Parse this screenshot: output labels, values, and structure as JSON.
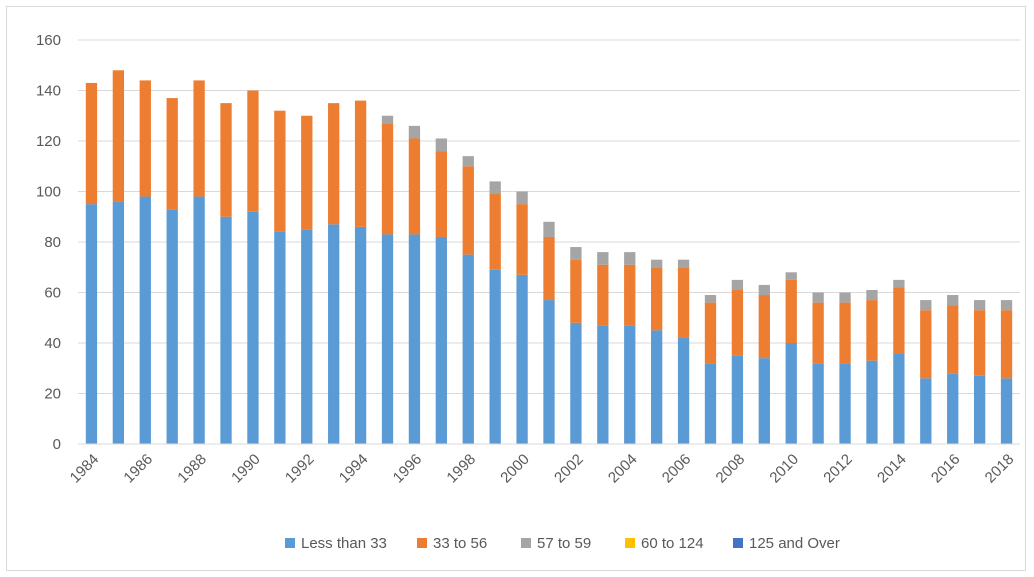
{
  "chart_data": {
    "type": "bar",
    "stacked": true,
    "title": "",
    "xlabel": "",
    "ylabel": "",
    "ylim": [
      0,
      160
    ],
    "yticks": [
      0,
      20,
      40,
      60,
      80,
      100,
      120,
      140,
      160
    ],
    "grid": true,
    "legend_position": "bottom",
    "categories": [
      "1984",
      "1985",
      "1986",
      "1987",
      "1988",
      "1989",
      "1990",
      "1991",
      "1992",
      "1993",
      "1994",
      "1995",
      "1996",
      "1997",
      "1998",
      "1999",
      "2000",
      "2001",
      "2002",
      "2003",
      "2004",
      "2005",
      "2006",
      "2007",
      "2008",
      "2009",
      "2010",
      "2011",
      "2012",
      "2013",
      "2014",
      "2015",
      "2016",
      "2017",
      "2018"
    ],
    "xtick_labels": [
      "1984",
      "1986",
      "1988",
      "1990",
      "1992",
      "1994",
      "1996",
      "1998",
      "2000",
      "2002",
      "2004",
      "2006",
      "2008",
      "2010",
      "2012",
      "2014",
      "2016",
      "2018"
    ],
    "series": [
      {
        "name": "Less than 33",
        "color": "#5b9bd5",
        "values": [
          95,
          96,
          98,
          93,
          98,
          90,
          92,
          84,
          85,
          87,
          86,
          83,
          83,
          82,
          75,
          69,
          67,
          57,
          48,
          47,
          47,
          45,
          42,
          32,
          35,
          34,
          40,
          32,
          32,
          33,
          36,
          26,
          28,
          27,
          26
        ]
      },
      {
        "name": "33 to 56",
        "color": "#ed7d31",
        "values": [
          48,
          52,
          46,
          44,
          46,
          45,
          48,
          48,
          45,
          48,
          50,
          44,
          38,
          34,
          35,
          30,
          28,
          25,
          25,
          24,
          24,
          25,
          28,
          24,
          26,
          25,
          25,
          24,
          24,
          24,
          26,
          27,
          27,
          26,
          27
        ]
      },
      {
        "name": "57 to 59",
        "color": "#a5a5a5",
        "values": [
          0,
          0,
          0,
          0,
          0,
          0,
          0,
          0,
          0,
          0,
          0,
          3,
          5,
          5,
          4,
          5,
          5,
          6,
          5,
          5,
          5,
          3,
          3,
          3,
          4,
          4,
          3,
          4,
          4,
          4,
          3,
          4,
          4,
          4,
          4
        ]
      },
      {
        "name": "60 to 124",
        "color": "#ffc000",
        "values": [
          0,
          0,
          0,
          0,
          0,
          0,
          0,
          0,
          0,
          0,
          0,
          0,
          0,
          0,
          0,
          0,
          0,
          0,
          0,
          0,
          0,
          0,
          0,
          0,
          0,
          0,
          0,
          0,
          0,
          0,
          0,
          0,
          0,
          0,
          0
        ]
      },
      {
        "name": "125 and Over",
        "color": "#4472c4",
        "values": [
          0,
          0,
          0,
          0,
          0,
          0,
          0,
          0,
          0,
          0,
          0,
          0,
          0,
          0,
          0,
          0,
          0,
          0,
          0,
          0,
          0,
          0,
          0,
          0,
          0,
          0,
          0,
          0,
          0,
          0,
          0,
          0,
          0,
          0,
          0
        ]
      }
    ]
  }
}
